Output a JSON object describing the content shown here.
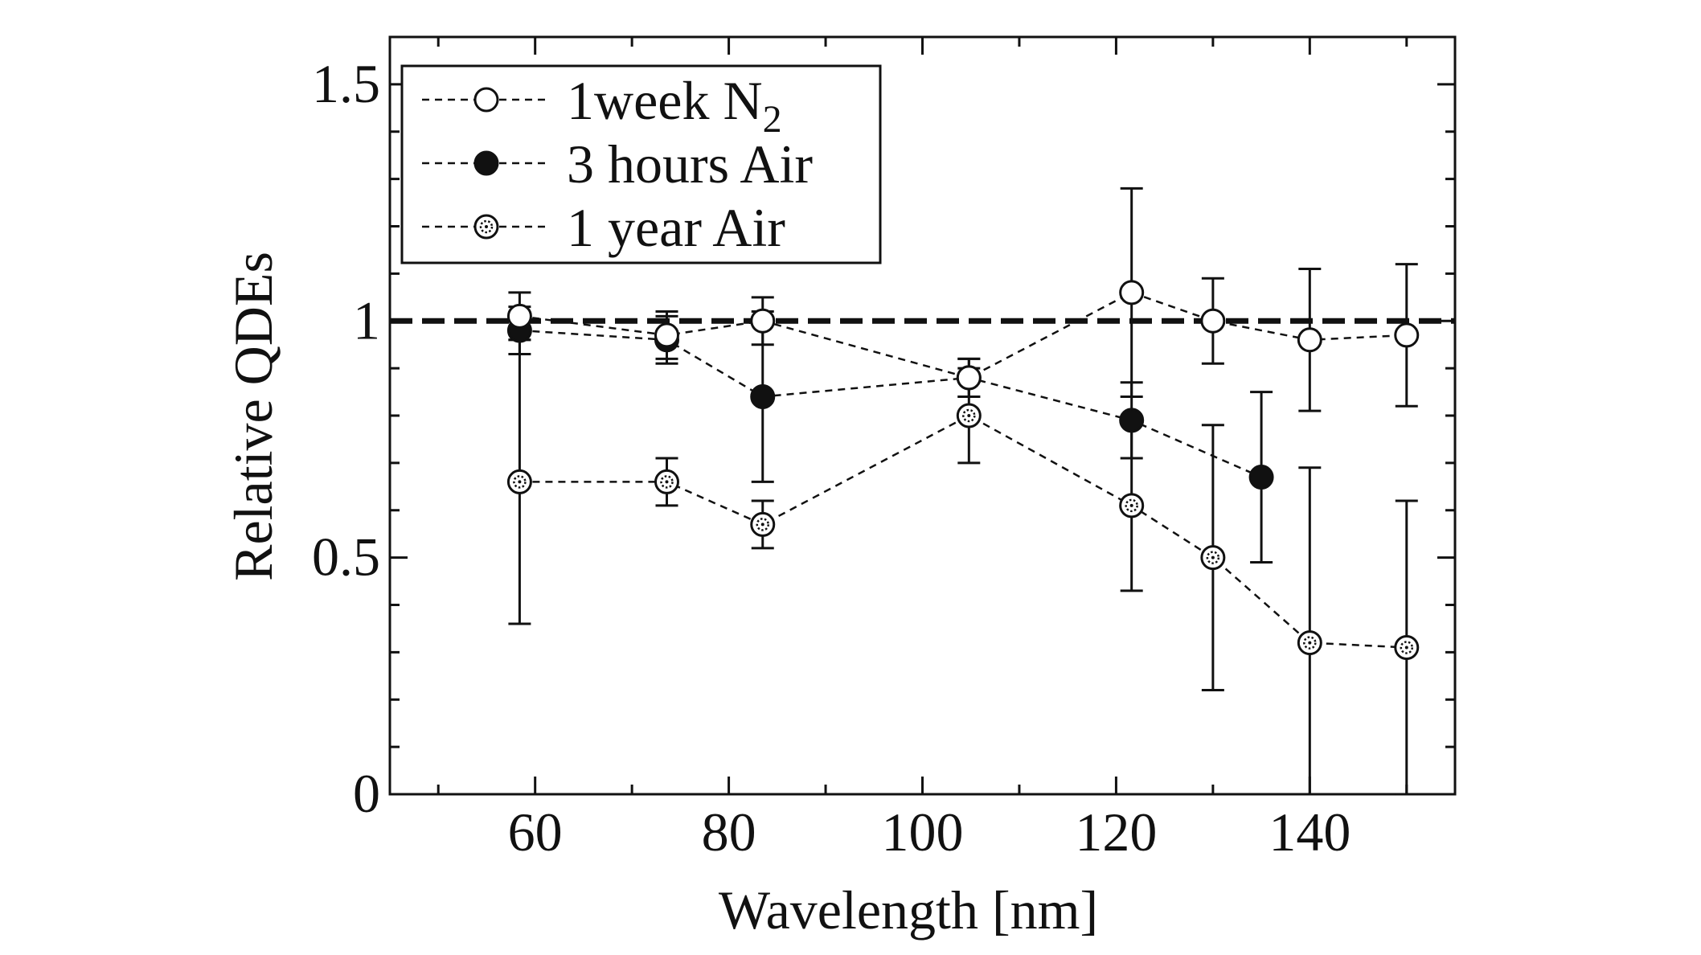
{
  "chart_data": {
    "type": "scatter",
    "title": "",
    "xlabel": "Wavelength [nm]",
    "ylabel": "Relative QDEs",
    "xlim": [
      45,
      155
    ],
    "ylim": [
      0,
      1.6
    ],
    "x_ticks": [
      60,
      80,
      100,
      120,
      140
    ],
    "x_tick_labels": [
      "60",
      "80",
      "100",
      "120",
      "140"
    ],
    "y_ticks": [
      0,
      0.5,
      1,
      1.5
    ],
    "y_tick_labels": [
      "0",
      "0.5",
      "1",
      "1.5"
    ],
    "reference_line": {
      "y": 1.0,
      "style": "dashed"
    },
    "legend": {
      "position": "top-left",
      "entries": [
        {
          "label": "1week N",
          "subscript": "2",
          "marker": "open-circle"
        },
        {
          "label": "3 hours Air",
          "marker": "filled-circle"
        },
        {
          "label": "1 year Air",
          "marker": "dotted-circle"
        }
      ]
    },
    "series": [
      {
        "name": "1week N2",
        "marker": "open-circle",
        "x": [
          58.4,
          73.6,
          83.5,
          104.8,
          121.6,
          130.0,
          140.0,
          150.0
        ],
        "y": [
          1.01,
          0.97,
          1.0,
          0.88,
          1.06,
          1.0,
          0.96,
          0.97
        ],
        "err": [
          0.05,
          0.05,
          0.05,
          0.04,
          0.22,
          0.09,
          0.15,
          0.15
        ]
      },
      {
        "name": "3 hours Air",
        "marker": "filled-circle",
        "x": [
          58.4,
          73.6,
          83.5,
          104.8,
          121.6,
          135.0
        ],
        "y": [
          0.98,
          0.96,
          0.84,
          0.88,
          0.79,
          0.67
        ],
        "err": [
          0.05,
          0.05,
          0.18,
          0.04,
          0.08,
          0.18
        ]
      },
      {
        "name": "1 year Air",
        "marker": "dotted-circle",
        "x": [
          58.4,
          73.6,
          83.5,
          104.8,
          121.6,
          130.0,
          140.0,
          150.0
        ],
        "y": [
          0.66,
          0.66,
          0.57,
          0.8,
          0.61,
          0.5,
          0.32,
          0.31
        ],
        "err": [
          0.3,
          0.05,
          0.05,
          0.1,
          0.18,
          0.28,
          0.37,
          0.31
        ]
      }
    ]
  }
}
